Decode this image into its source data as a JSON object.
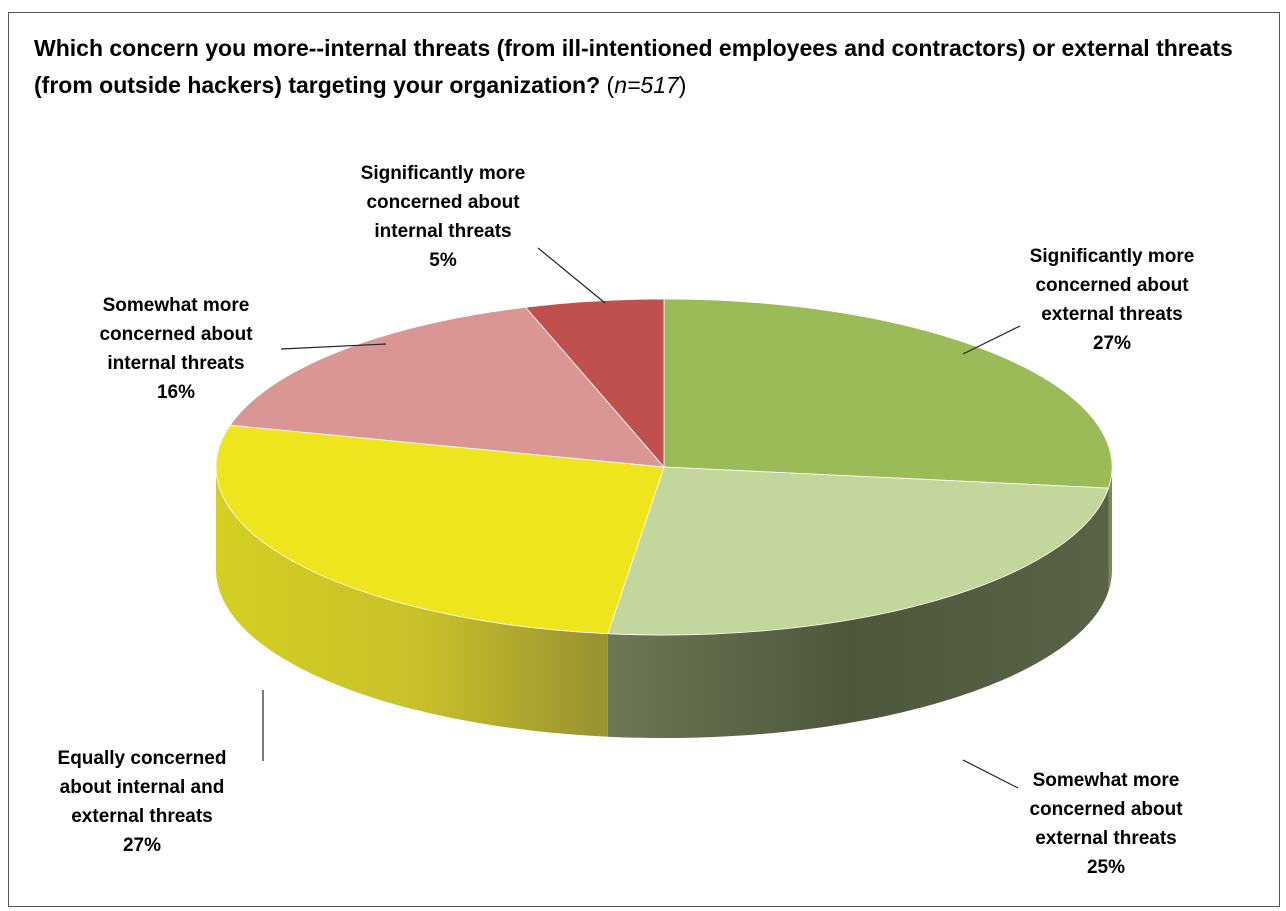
{
  "chart_data": {
    "type": "pie",
    "title": "Which concern you more--internal threats (from ill-intentioned employees and contractors) or external threats (from outside hackers) targeting your organization?",
    "sample_note": "n=517",
    "slices": [
      {
        "label": "Significantly more concerned about external threats",
        "value": 27,
        "value_label": "27%",
        "color": "#9bbb59"
      },
      {
        "label": "Somewhat more concerned about external threats",
        "value": 25,
        "value_label": "25%",
        "color": "#c3d69b"
      },
      {
        "label": "Equally concerned about internal and external threats",
        "value": 27,
        "value_label": "27%",
        "color": "#eee51f"
      },
      {
        "label": "Somewhat more concerned about internal threats",
        "value": 16,
        "value_label": "16%",
        "color": "#d99694"
      },
      {
        "label": "Significantly more concerned about internal threats",
        "value": 5,
        "value_label": "5%",
        "color": "#c0504d"
      }
    ],
    "legend": "none",
    "style": "3d-pie"
  }
}
